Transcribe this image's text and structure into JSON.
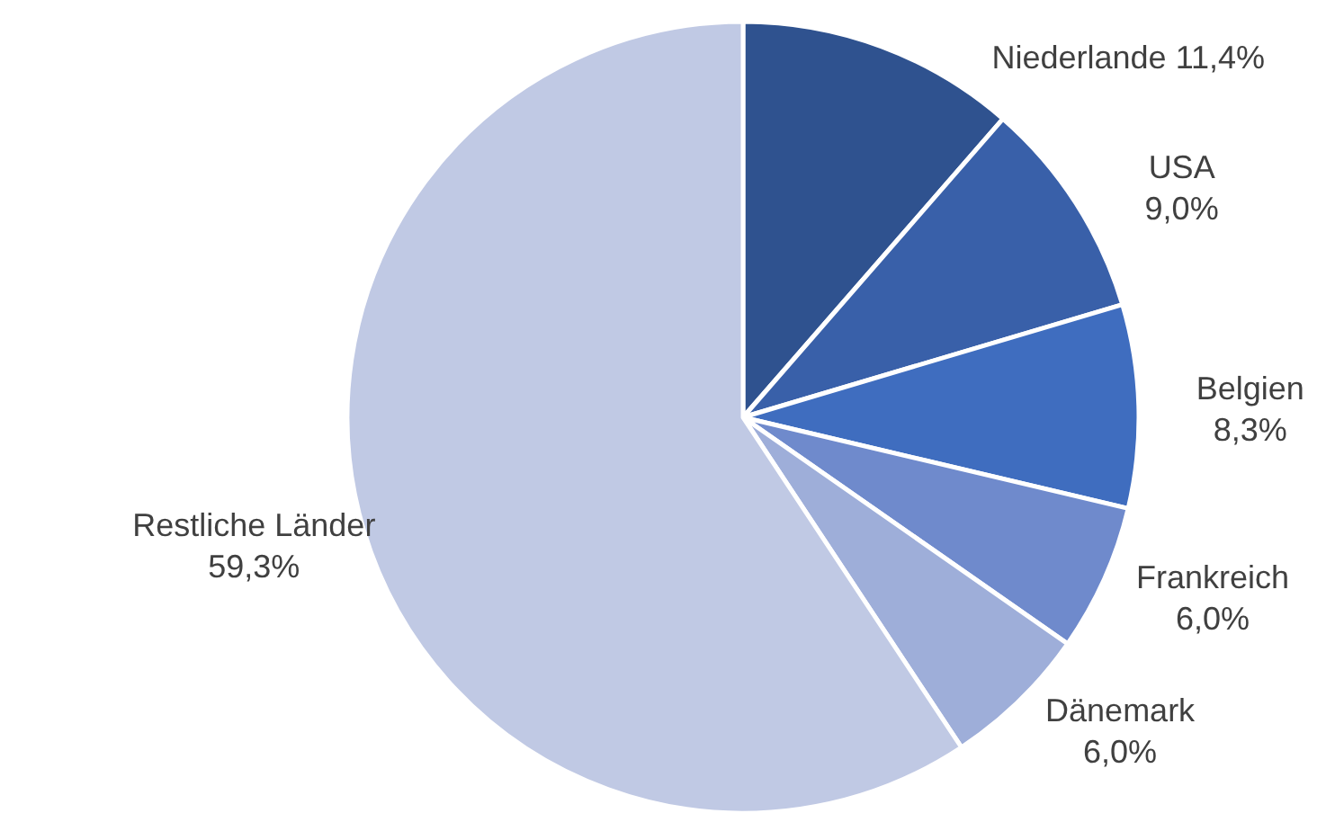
{
  "chart_data": {
    "type": "pie",
    "categories": [
      "Niederlande",
      "USA",
      "Belgien",
      "Frankreich",
      "Dänemark",
      "Restliche Länder"
    ],
    "values": [
      11.4,
      9.0,
      8.3,
      6.0,
      6.0,
      59.3
    ],
    "value_labels": [
      "11,4%",
      "9,0%",
      "8,3%",
      "6,0%",
      "6,0%",
      "59,3%"
    ],
    "colors": [
      "#2f528f",
      "#3960a9",
      "#3f6dbf",
      "#6f8acc",
      "#9eaed9",
      "#c0c9e4"
    ],
    "legend": false
  }
}
